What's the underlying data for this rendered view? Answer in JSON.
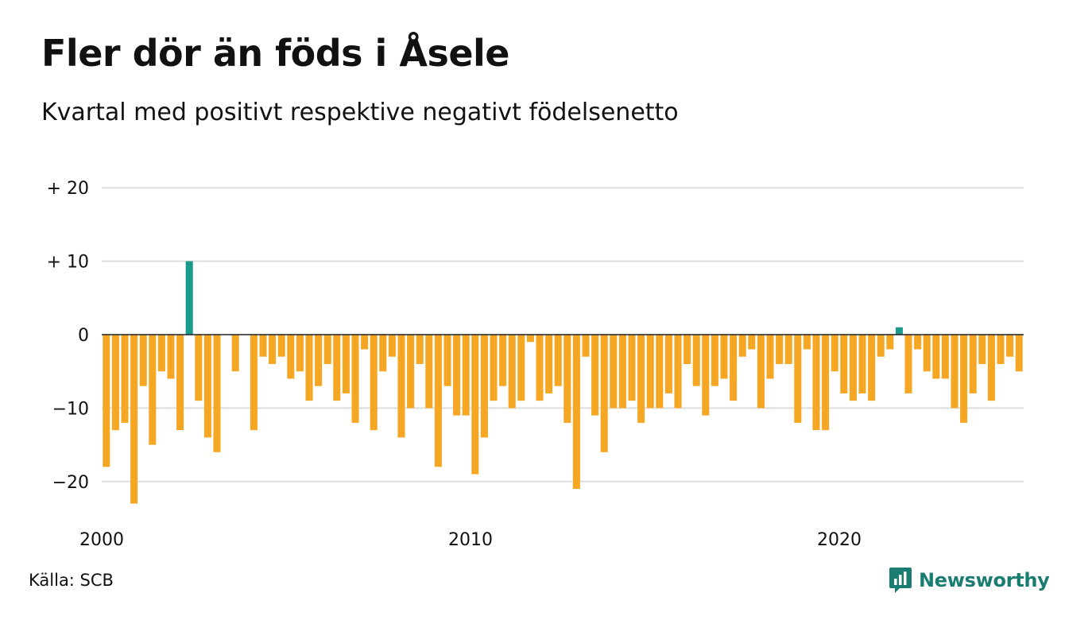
{
  "header": {
    "title": "Fler dör än föds i Åsele",
    "subtitle": "Kvartal med positivt respektive negativt födelsenetto"
  },
  "footer": {
    "source": "Källa: SCB",
    "brand": "Newsworthy",
    "brand_icon": "newsworthy-logo-icon"
  },
  "colors": {
    "negative": "#f5a623",
    "positive": "#1a9a8a",
    "grid": "#dddddd",
    "zero_line": "#222222"
  },
  "chart_data": {
    "type": "bar",
    "title": "Fler dör än föds i Åsele",
    "subtitle": "Kvartal med positivt respektive negativt födelsenetto",
    "ylim": [
      -25,
      23
    ],
    "y_ticks": [
      {
        "value": 20,
        "label": "+ 20"
      },
      {
        "value": 10,
        "label": "+ 10"
      },
      {
        "value": 0,
        "label": "0"
      },
      {
        "value": -10,
        "label": "−10"
      },
      {
        "value": -20,
        "label": "−20"
      }
    ],
    "x_start": 2000,
    "x_end": 2025,
    "x_ticks": [
      {
        "value": 2000,
        "label": "2000"
      },
      {
        "value": 2010,
        "label": "2010"
      },
      {
        "value": 2020,
        "label": "2020"
      }
    ],
    "grid": true,
    "categories": [
      "2000Q1",
      "2000Q2",
      "2000Q3",
      "2000Q4",
      "2001Q1",
      "2001Q2",
      "2001Q3",
      "2001Q4",
      "2002Q1",
      "2002Q2",
      "2002Q3",
      "2002Q4",
      "2003Q1",
      "2003Q2",
      "2003Q3",
      "2003Q4",
      "2004Q1",
      "2004Q2",
      "2004Q3",
      "2004Q4",
      "2005Q1",
      "2005Q2",
      "2005Q3",
      "2005Q4",
      "2006Q1",
      "2006Q2",
      "2006Q3",
      "2006Q4",
      "2007Q1",
      "2007Q2",
      "2007Q3",
      "2007Q4",
      "2008Q1",
      "2008Q2",
      "2008Q3",
      "2008Q4",
      "2009Q1",
      "2009Q2",
      "2009Q3",
      "2009Q4",
      "2010Q1",
      "2010Q2",
      "2010Q3",
      "2010Q4",
      "2011Q1",
      "2011Q2",
      "2011Q3",
      "2011Q4",
      "2012Q1",
      "2012Q2",
      "2012Q3",
      "2012Q4",
      "2013Q1",
      "2013Q2",
      "2013Q3",
      "2013Q4",
      "2014Q1",
      "2014Q2",
      "2014Q3",
      "2014Q4",
      "2015Q1",
      "2015Q2",
      "2015Q3",
      "2015Q4",
      "2016Q1",
      "2016Q2",
      "2016Q3",
      "2016Q4",
      "2017Q1",
      "2017Q2",
      "2017Q3",
      "2017Q4",
      "2018Q1",
      "2018Q2",
      "2018Q3",
      "2018Q4",
      "2019Q1",
      "2019Q2",
      "2019Q3",
      "2019Q4",
      "2020Q1",
      "2020Q2",
      "2020Q3",
      "2020Q4",
      "2021Q1",
      "2021Q2",
      "2021Q3",
      "2021Q4",
      "2022Q1",
      "2022Q2",
      "2022Q3",
      "2022Q4",
      "2023Q1",
      "2023Q2",
      "2023Q3",
      "2023Q4",
      "2024Q1",
      "2024Q2",
      "2024Q3",
      "2024Q4"
    ],
    "values": [
      -18,
      -13,
      -12,
      -23,
      -7,
      -15,
      -5,
      -6,
      -13,
      10,
      -9,
      -14,
      -16,
      0,
      -5,
      0,
      -13,
      -3,
      -4,
      -3,
      -6,
      -5,
      -9,
      -7,
      -4,
      -9,
      -8,
      -12,
      -2,
      -13,
      -5,
      -3,
      -14,
      -10,
      -4,
      -10,
      -18,
      -7,
      -11,
      -11,
      -19,
      -14,
      -9,
      -7,
      -10,
      -9,
      -1,
      -9,
      -8,
      -7,
      -12,
      -21,
      -3,
      -11,
      -16,
      -10,
      -10,
      -9,
      -12,
      -10,
      -10,
      -8,
      -10,
      -4,
      -7,
      -11,
      -7,
      -6,
      -9,
      -3,
      -2,
      -10,
      -6,
      -4,
      -4,
      -12,
      -2,
      -13,
      -13,
      -5,
      -8,
      -9,
      -8,
      -9,
      -3,
      -2,
      1,
      -8,
      -2,
      -5,
      -6,
      -6,
      -10,
      -12,
      -8,
      -4,
      -9,
      -4,
      -3,
      -5
    ]
  }
}
